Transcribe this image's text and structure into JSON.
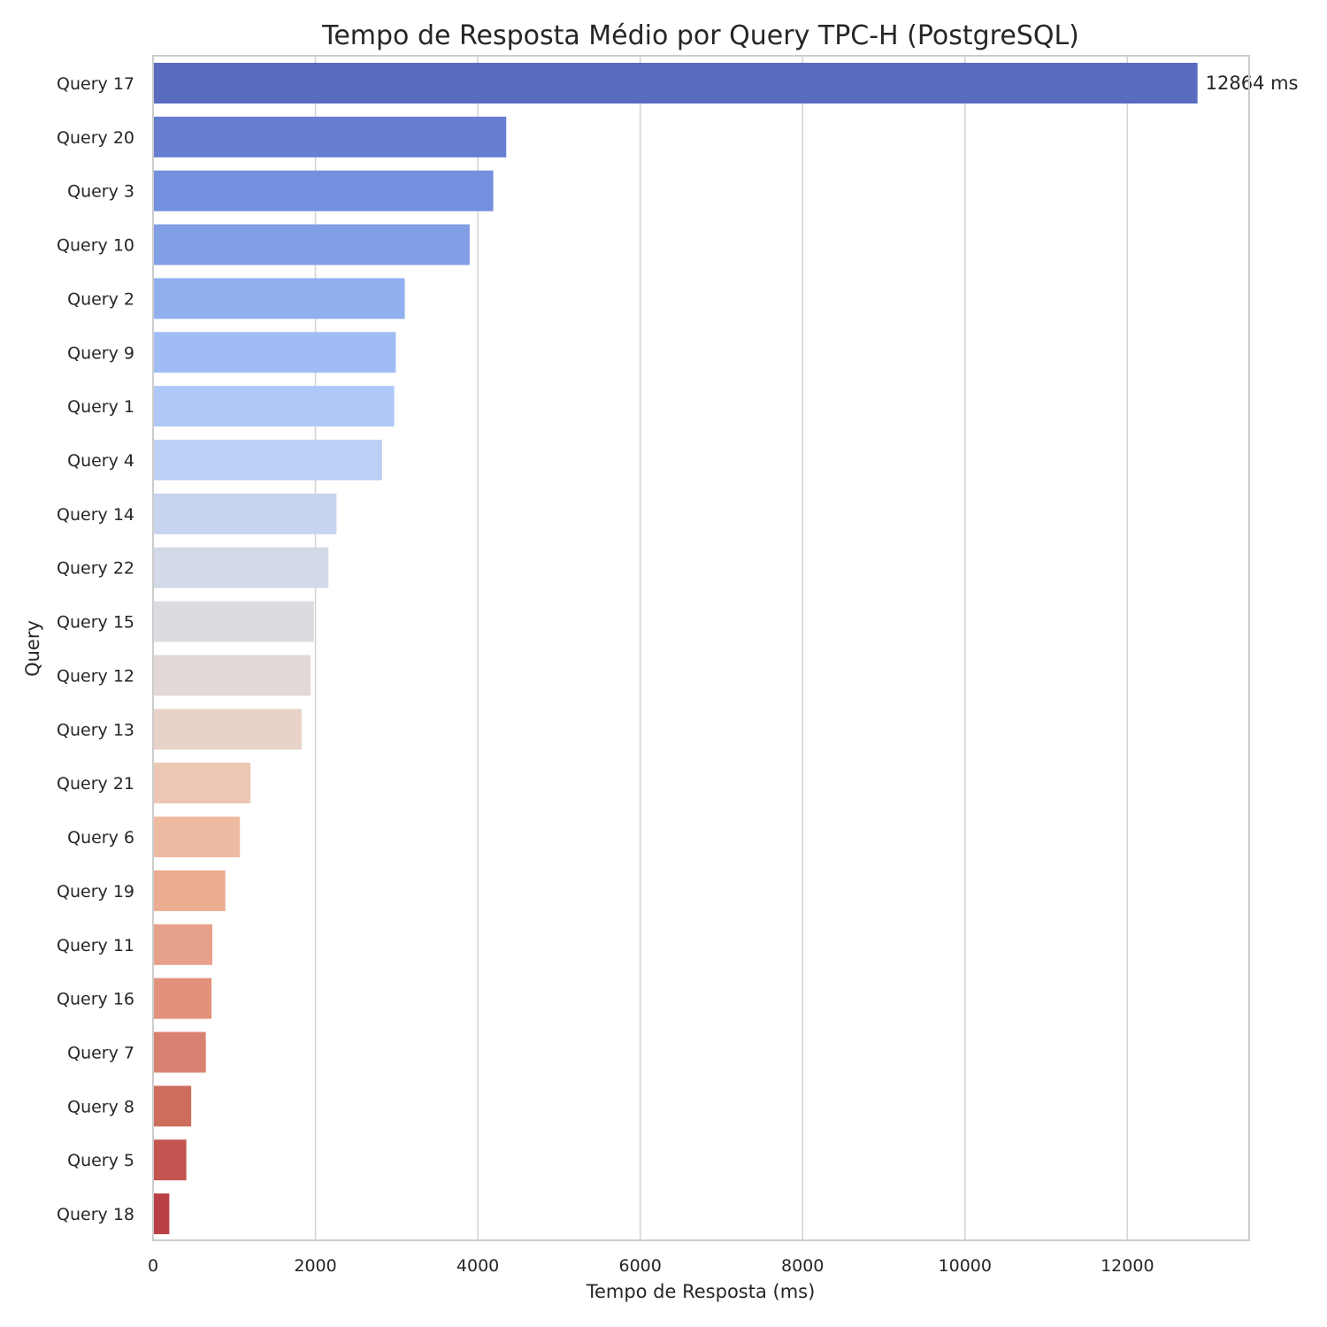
{
  "chart_data": {
    "type": "bar",
    "orientation": "horizontal",
    "title": "Tempo de Resposta Médio por Query TPC-H (PostgreSQL)",
    "xlabel": "Tempo de Resposta (ms)",
    "ylabel": "Query",
    "xlim": [
      0,
      13500
    ],
    "xticks": [
      0,
      2000,
      4000,
      6000,
      8000,
      10000,
      12000
    ],
    "grid": "vertical",
    "categories": [
      "Query 17",
      "Query 20",
      "Query 3",
      "Query 10",
      "Query 2",
      "Query 9",
      "Query 1",
      "Query 4",
      "Query 14",
      "Query 22",
      "Query 15",
      "Query 12",
      "Query 13",
      "Query 21",
      "Query 6",
      "Query 19",
      "Query 11",
      "Query 16",
      "Query 7",
      "Query 8",
      "Query 5",
      "Query 18"
    ],
    "values": [
      12864,
      4350,
      4190,
      3900,
      3100,
      2990,
      2970,
      2820,
      2260,
      2160,
      1980,
      1940,
      1830,
      1200,
      1070,
      890,
      730,
      720,
      650,
      470,
      410,
      200
    ],
    "colors": [
      "#5a6cbe",
      "#667ed2",
      "#748fdd",
      "#829fe6",
      "#90afef",
      "#a0bcf4",
      "#afc8f8",
      "#bccff5",
      "#c8d4ef",
      "#d3d9e6",
      "#dbdcdf",
      "#e2d9d7",
      "#e8d3c8",
      "#ecc7b3",
      "#eebba2",
      "#ebac8f",
      "#e7a08a",
      "#e2917a",
      "#d88170",
      "#cd6d5e",
      "#c45550",
      "#b94044"
    ],
    "annotations": [
      {
        "category": "Query 17",
        "text": "12864 ms"
      }
    ]
  }
}
